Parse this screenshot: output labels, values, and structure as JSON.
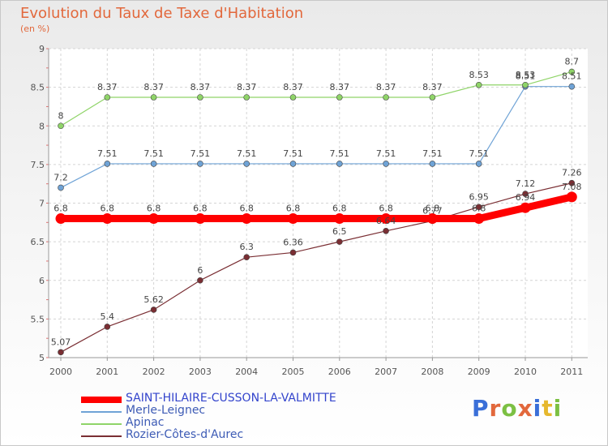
{
  "header": {
    "title": "Evolution du Taux de Taxe d'Habitation",
    "subtitle": "(en %)"
  },
  "logo": {
    "text": "Proxiti"
  },
  "chart_data": {
    "type": "line",
    "title": "Evolution du Taux de Taxe d'Habitation",
    "subtitle": "(en %)",
    "x": [
      "2000",
      "2001",
      "2002",
      "2003",
      "2004",
      "2005",
      "2006",
      "2007",
      "2008",
      "2009",
      "2010",
      "2011"
    ],
    "ylim": [
      5,
      9
    ],
    "yticks": [
      "5",
      "5.5",
      "6",
      "6.5",
      "7",
      "7.5",
      "8",
      "8.5",
      "9"
    ],
    "grid": true,
    "legend_position": "bottom-left",
    "series": [
      {
        "name": "SAINT-HILAIRE-CUSSON-LA-VALMITTE",
        "color": "#ff0000",
        "bold": true,
        "values": [
          6.8,
          6.8,
          6.8,
          6.8,
          6.8,
          6.8,
          6.8,
          6.8,
          6.8,
          6.8,
          6.94,
          7.08
        ],
        "labels": [
          "6.8",
          "6.8",
          "6.8",
          "6.8",
          "6.8",
          "6.8",
          "6.8",
          "6.8",
          "6.8",
          "6.8",
          "6.94",
          "7.08"
        ]
      },
      {
        "name": "Merle-Leignec",
        "color": "#6fa3d6",
        "bold": false,
        "values": [
          7.2,
          7.51,
          7.51,
          7.51,
          7.51,
          7.51,
          7.51,
          7.51,
          7.51,
          7.51,
          8.51,
          8.51
        ],
        "labels": [
          "7.2",
          "7.51",
          "7.51",
          "7.51",
          "7.51",
          "7.51",
          "7.51",
          "7.51",
          "7.51",
          "7.51",
          "8.51",
          "8.51"
        ]
      },
      {
        "name": "Apinac",
        "color": "#8fd468",
        "bold": false,
        "values": [
          8,
          8.37,
          8.37,
          8.37,
          8.37,
          8.37,
          8.37,
          8.37,
          8.37,
          8.53,
          8.53,
          8.7
        ],
        "labels": [
          "8",
          "8.37",
          "8.37",
          "8.37",
          "8.37",
          "8.37",
          "8.37",
          "8.37",
          "8.37",
          "8.53",
          "8.53",
          "8.7"
        ]
      },
      {
        "name": "Rozier-Côtes-d'Aurec",
        "color": "#7a2e33",
        "bold": false,
        "values": [
          5.07,
          5.4,
          5.62,
          6,
          6.3,
          6.36,
          6.5,
          6.64,
          6.77,
          6.95,
          7.12,
          7.26
        ],
        "labels": [
          "5.07",
          "5.4",
          "5.62",
          "6",
          "6.3",
          "6.36",
          "6.5",
          "6.64",
          "6.77",
          "6.95",
          "7.12",
          "7.26"
        ]
      }
    ]
  }
}
